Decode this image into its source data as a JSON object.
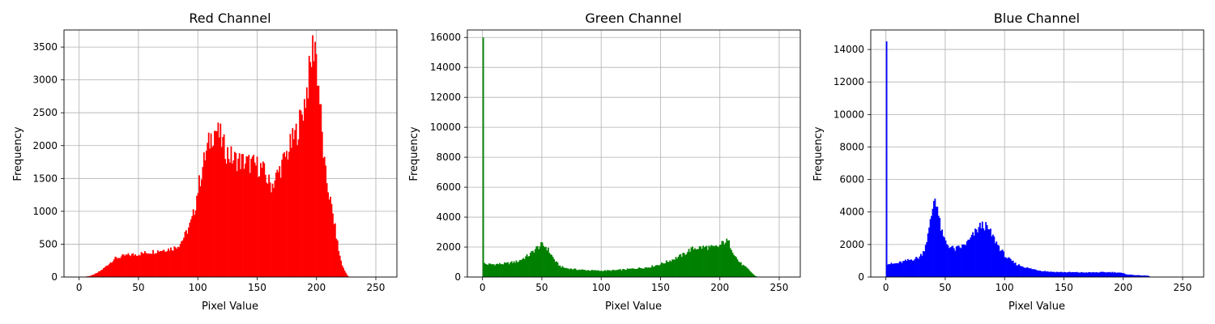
{
  "chart_data": [
    {
      "type": "bar",
      "title": "Red Channel",
      "xlabel": "Pixel Value",
      "ylabel": "Frequency",
      "color": "#ff0000",
      "grid": true,
      "xlim": [
        -12.75,
        267.75
      ],
      "ylim": [
        0,
        3760
      ],
      "xticks": [
        0,
        50,
        100,
        150,
        200,
        250
      ],
      "yticks": [
        0,
        500,
        1000,
        1500,
        2000,
        2500,
        3000,
        3500
      ],
      "bins": 256,
      "profile": [
        [
          0,
          0
        ],
        [
          5,
          5
        ],
        [
          10,
          20
        ],
        [
          15,
          60
        ],
        [
          20,
          120
        ],
        [
          25,
          200
        ],
        [
          30,
          280
        ],
        [
          40,
          330
        ],
        [
          50,
          350
        ],
        [
          60,
          380
        ],
        [
          70,
          410
        ],
        [
          80,
          440
        ],
        [
          85,
          500
        ],
        [
          90,
          650
        ],
        [
          95,
          850
        ],
        [
          98,
          1050
        ],
        [
          100,
          1300
        ],
        [
          103,
          1550
        ],
        [
          106,
          1800
        ],
        [
          110,
          2050
        ],
        [
          113,
          2200
        ],
        [
          116,
          2250
        ],
        [
          119,
          2150
        ],
        [
          122,
          2000
        ],
        [
          125,
          1900
        ],
        [
          130,
          1800
        ],
        [
          140,
          1750
        ],
        [
          150,
          1700
        ],
        [
          155,
          1650
        ],
        [
          160,
          1450
        ],
        [
          163,
          1400
        ],
        [
          166,
          1500
        ],
        [
          170,
          1650
        ],
        [
          175,
          1850
        ],
        [
          180,
          2050
        ],
        [
          185,
          2250
        ],
        [
          190,
          2600
        ],
        [
          193,
          2900
        ],
        [
          196,
          3250
        ],
        [
          198,
          3550
        ],
        [
          200,
          3450
        ],
        [
          202,
          3000
        ],
        [
          204,
          2600
        ],
        [
          206,
          2000
        ],
        [
          208,
          1600
        ],
        [
          212,
          1200
        ],
        [
          216,
          800
        ],
        [
          220,
          350
        ],
        [
          223,
          150
        ],
        [
          226,
          50
        ],
        [
          228,
          0
        ],
        [
          255,
          0
        ]
      ],
      "peaks": [
        [
          117,
          2350
        ],
        [
          199,
          3580
        ]
      ]
    },
    {
      "type": "bar",
      "title": "Green Channel",
      "xlabel": "Pixel Value",
      "ylabel": "Frequency",
      "color": "#008000",
      "grid": true,
      "xlim": [
        -12.75,
        267.75
      ],
      "ylim": [
        0,
        16500
      ],
      "xticks": [
        0,
        50,
        100,
        150,
        200,
        250
      ],
      "yticks": [
        0,
        2000,
        4000,
        6000,
        8000,
        10000,
        12000,
        14000,
        16000
      ],
      "bins": 256,
      "profile": [
        [
          0,
          950
        ],
        [
          3,
          850
        ],
        [
          10,
          850
        ],
        [
          20,
          900
        ],
        [
          30,
          1050
        ],
        [
          40,
          1500
        ],
        [
          45,
          1900
        ],
        [
          50,
          2150
        ],
        [
          54,
          2000
        ],
        [
          58,
          1500
        ],
        [
          62,
          1000
        ],
        [
          66,
          700
        ],
        [
          70,
          600
        ],
        [
          80,
          500
        ],
        [
          90,
          450
        ],
        [
          100,
          420
        ],
        [
          110,
          440
        ],
        [
          120,
          500
        ],
        [
          130,
          580
        ],
        [
          140,
          650
        ],
        [
          150,
          850
        ],
        [
          160,
          1150
        ],
        [
          170,
          1500
        ],
        [
          175,
          1800
        ],
        [
          180,
          1950
        ],
        [
          190,
          2000
        ],
        [
          195,
          1950
        ],
        [
          200,
          2050
        ],
        [
          205,
          2400
        ],
        [
          208,
          2350
        ],
        [
          212,
          1700
        ],
        [
          216,
          1100
        ],
        [
          220,
          800
        ],
        [
          225,
          500
        ],
        [
          230,
          100
        ],
        [
          233,
          0
        ],
        [
          255,
          0
        ]
      ],
      "peaks": [
        [
          0,
          16000
        ]
      ]
    },
    {
      "type": "bar",
      "title": "Blue Channel",
      "xlabel": "Pixel Value",
      "ylabel": "Frequency",
      "color": "#0000ff",
      "grid": true,
      "xlim": [
        -12.75,
        267.75
      ],
      "ylim": [
        0,
        15200
      ],
      "xticks": [
        0,
        50,
        100,
        150,
        200,
        250
      ],
      "yticks": [
        0,
        2000,
        4000,
        6000,
        8000,
        10000,
        12000,
        14000
      ],
      "bins": 256,
      "profile": [
        [
          0,
          850
        ],
        [
          5,
          800
        ],
        [
          10,
          850
        ],
        [
          20,
          1050
        ],
        [
          28,
          1200
        ],
        [
          32,
          1600
        ],
        [
          36,
          2700
        ],
        [
          39,
          4000
        ],
        [
          41,
          5000
        ],
        [
          43,
          4600
        ],
        [
          45,
          3500
        ],
        [
          48,
          2500
        ],
        [
          52,
          2000
        ],
        [
          58,
          1700
        ],
        [
          65,
          1900
        ],
        [
          70,
          2200
        ],
        [
          75,
          2700
        ],
        [
          80,
          3150
        ],
        [
          83,
          3200
        ],
        [
          87,
          2900
        ],
        [
          92,
          2300
        ],
        [
          97,
          1700
        ],
        [
          102,
          1200
        ],
        [
          110,
          800
        ],
        [
          120,
          550
        ],
        [
          130,
          400
        ],
        [
          140,
          320
        ],
        [
          150,
          300
        ],
        [
          170,
          280
        ],
        [
          190,
          300
        ],
        [
          197,
          280
        ],
        [
          205,
          150
        ],
        [
          215,
          100
        ],
        [
          222,
          80
        ],
        [
          224,
          0
        ],
        [
          255,
          0
        ]
      ],
      "peaks": [
        [
          0,
          14500
        ]
      ]
    }
  ]
}
